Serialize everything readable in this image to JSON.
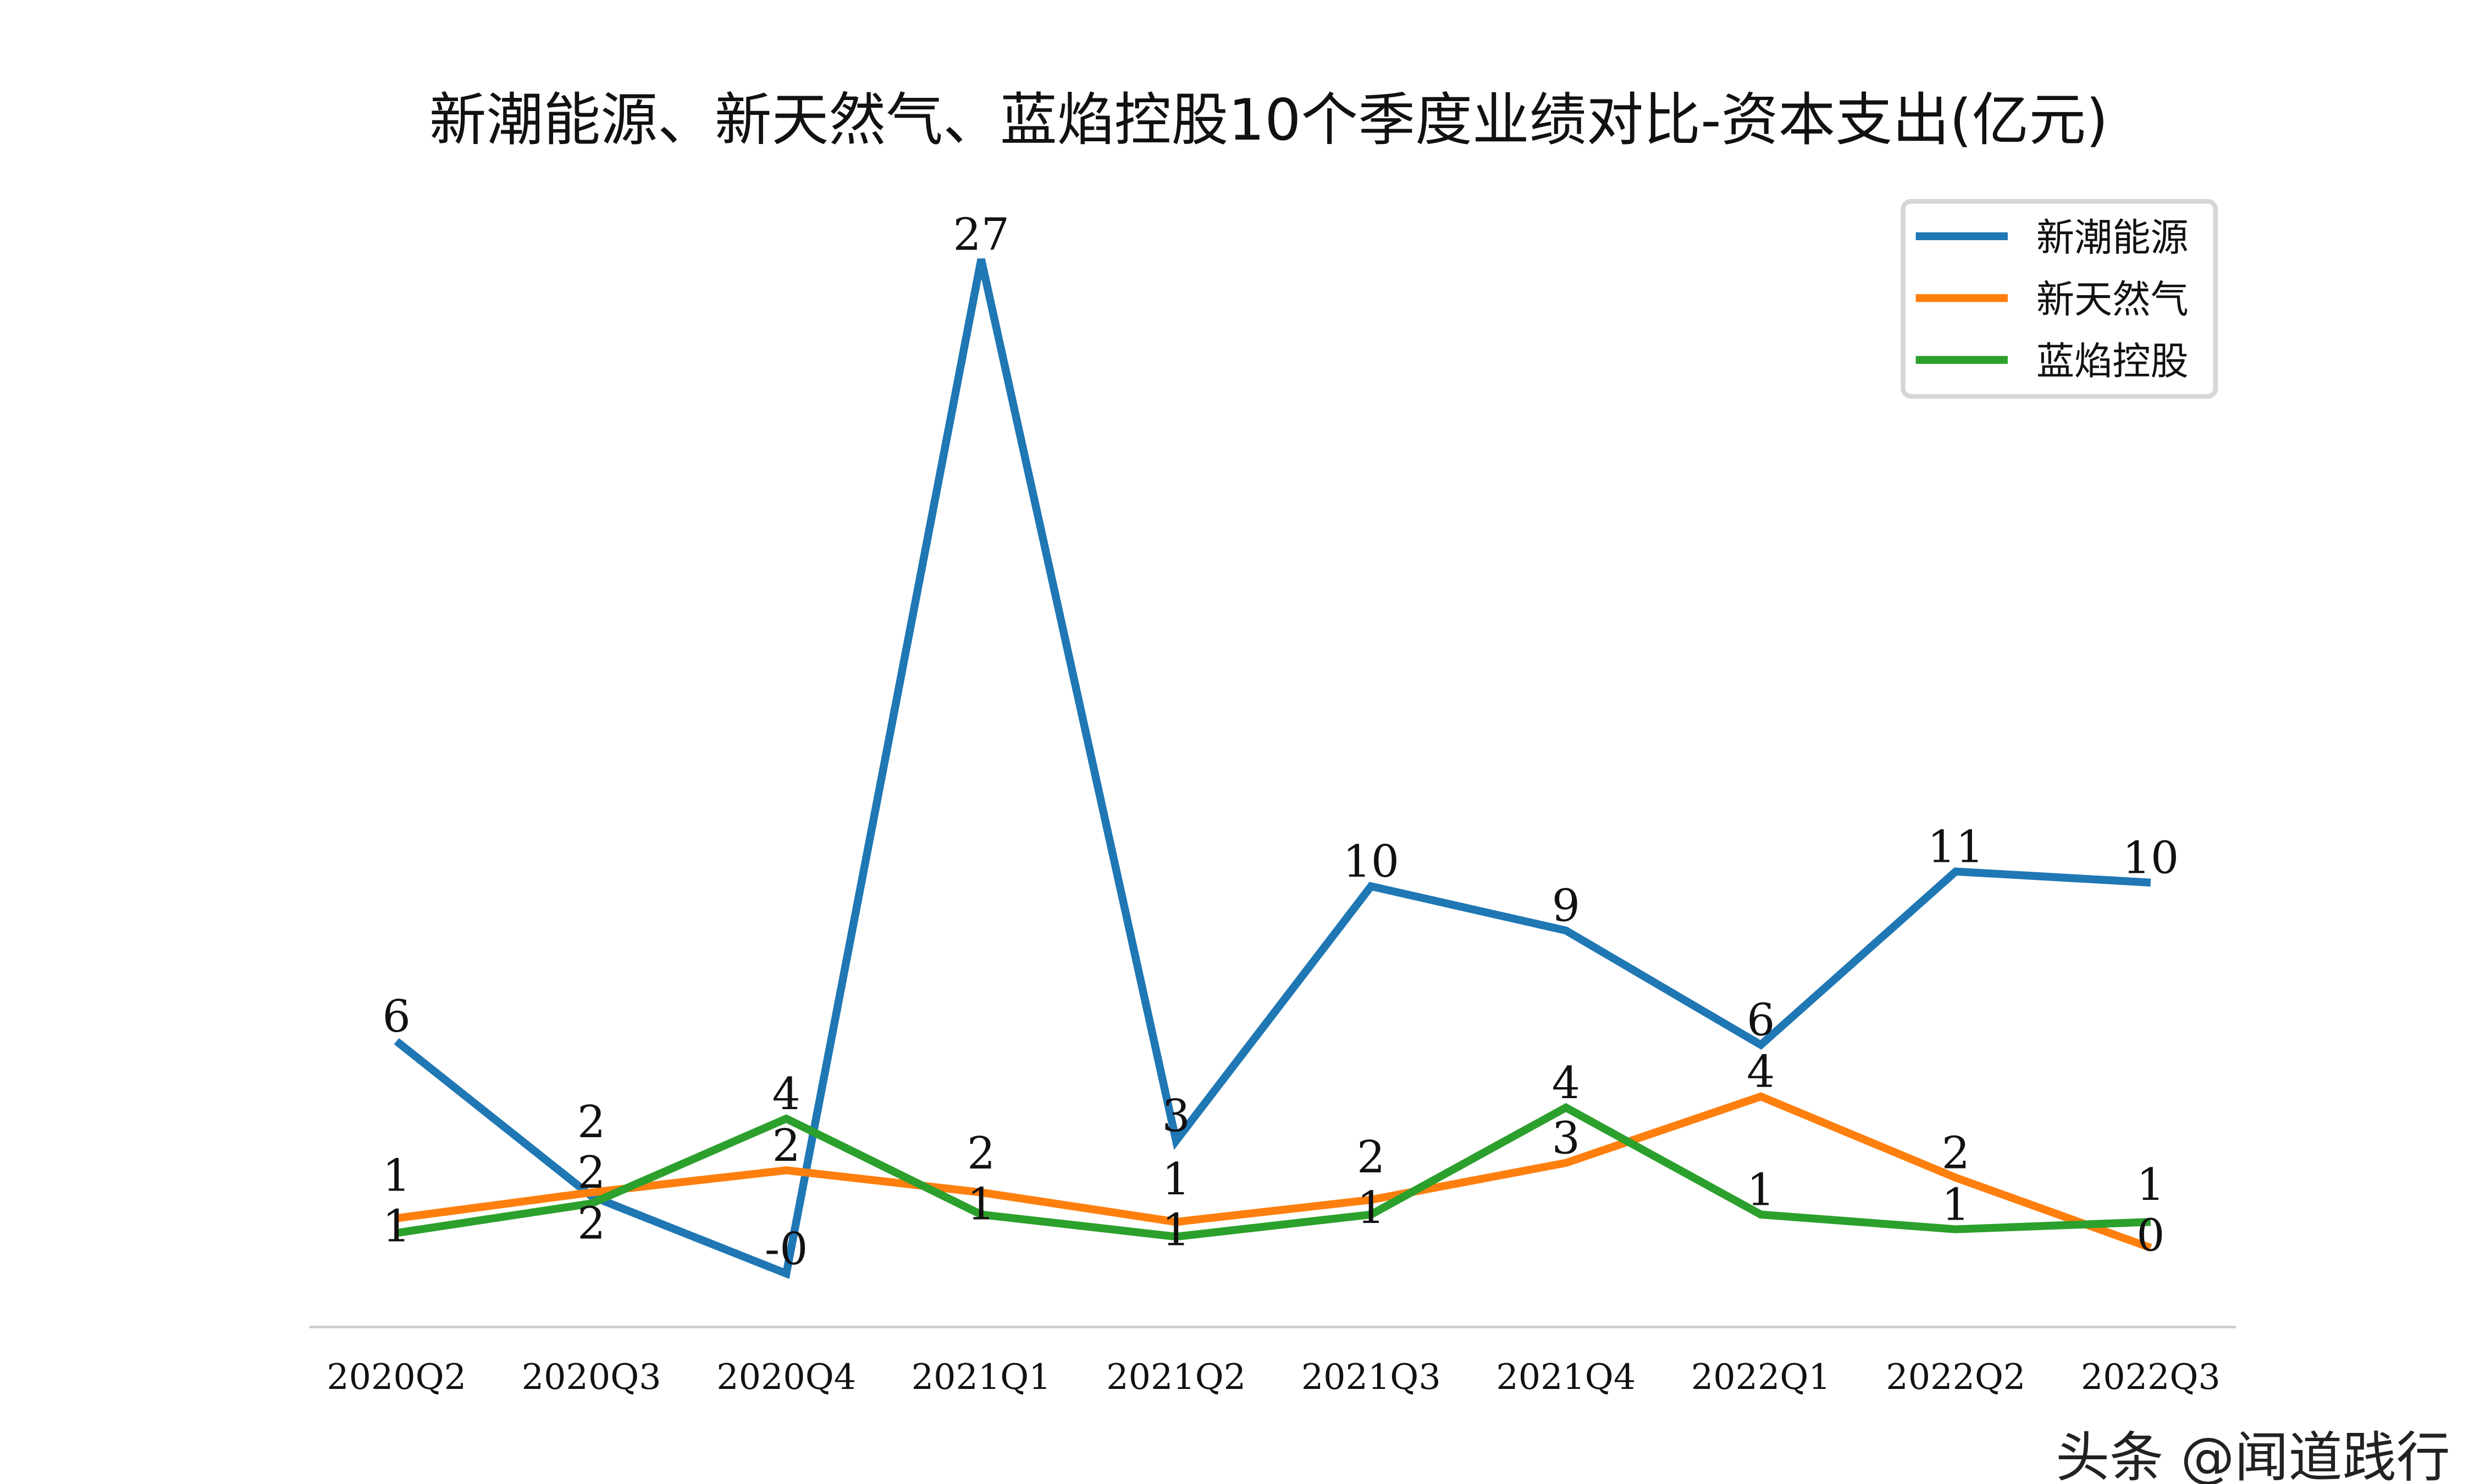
{
  "chart_data": {
    "type": "line",
    "title": "新潮能源、新天然气、蓝焰控股10个季度业绩对比-资本支出(亿元)",
    "xlabel": "",
    "ylabel": "",
    "categories": [
      "2020Q2",
      "2020Q3",
      "2020Q4",
      "2021Q1",
      "2021Q2",
      "2021Q3",
      "2021Q4",
      "2022Q1",
      "2022Q2",
      "2022Q3"
    ],
    "series": [
      {
        "name": "新潮能源",
        "color": "#1f77b4",
        "values": [
          6.0,
          1.8,
          -0.3,
          27.2,
          3.3,
          10.2,
          9.0,
          5.9,
          10.6,
          10.3
        ],
        "labels": [
          "6",
          "2",
          "-0",
          "27",
          "3",
          "10",
          "9",
          "6",
          "11",
          "10"
        ]
      },
      {
        "name": "新天然气",
        "color": "#ff7f0e",
        "values": [
          1.2,
          1.9,
          2.5,
          1.9,
          1.1,
          1.7,
          2.7,
          4.5,
          2.3,
          0.4
        ],
        "labels": [
          "1",
          "2",
          "2",
          "2",
          "1",
          "2",
          "3",
          "4",
          "2",
          "0"
        ]
      },
      {
        "name": "蓝焰控股",
        "color": "#2ca02c",
        "values": [
          0.8,
          1.6,
          3.9,
          1.3,
          0.7,
          1.3,
          4.2,
          1.3,
          0.9,
          1.1
        ],
        "labels": [
          "1",
          "2",
          "4",
          "1",
          "1",
          "1",
          "4",
          "1",
          "1",
          "1"
        ]
      }
    ],
    "ylim": [
      -1.75,
      29.5
    ],
    "grid": false,
    "legend_position": "top-right"
  },
  "watermark": "头条 @闻道践行"
}
